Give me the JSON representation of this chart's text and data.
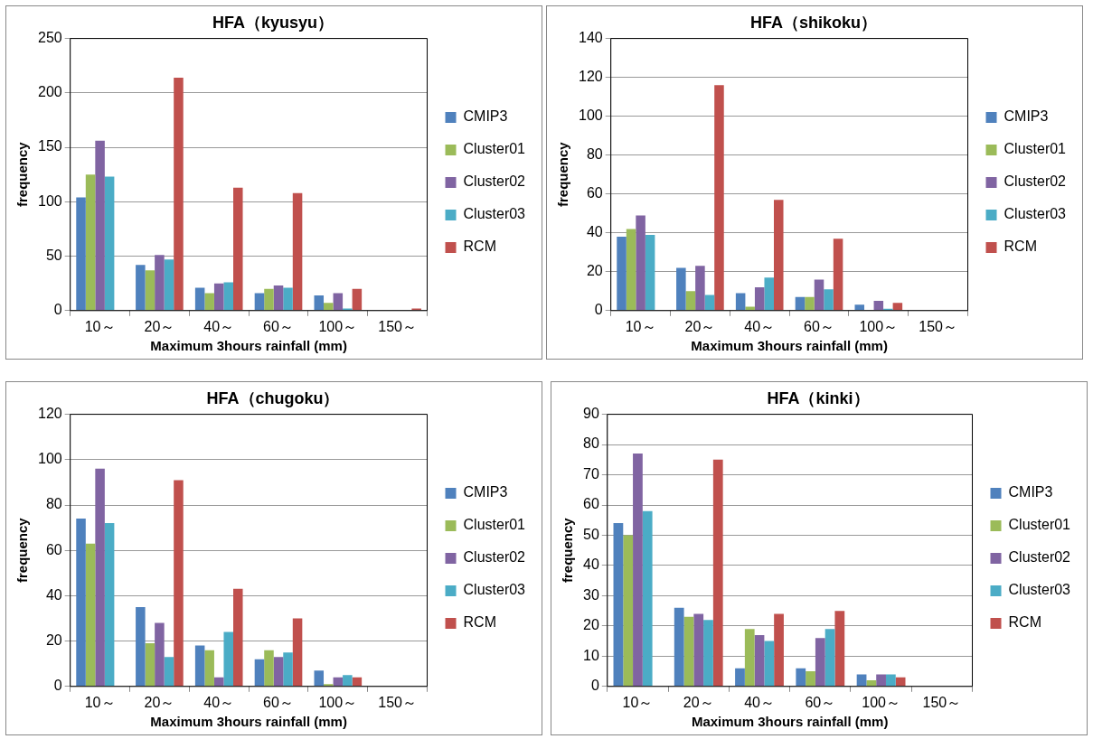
{
  "chart_data": [
    {
      "type": "bar",
      "title": "HFA（kyusyu）",
      "xlabel": "Maximum 3hours rainfall (mm)",
      "ylabel": "frequency",
      "categories": [
        "10～",
        "20～",
        "40～",
        "60～",
        "100～",
        "150～"
      ],
      "ylim": [
        0,
        250
      ],
      "yticks": [
        0,
        50,
        100,
        150,
        200,
        250
      ],
      "grid": "y",
      "legend": "right",
      "series": [
        {
          "name": "CMIP3",
          "color": "#4f81bd",
          "values": [
            104,
            42,
            21,
            16,
            14,
            0
          ]
        },
        {
          "name": "Cluster01",
          "color": "#9bbb59",
          "values": [
            125,
            37,
            16,
            20,
            7,
            0
          ]
        },
        {
          "name": "Cluster02",
          "color": "#8064a2",
          "values": [
            156,
            51,
            25,
            23,
            16,
            0
          ]
        },
        {
          "name": "Cluster03",
          "color": "#4bacc6",
          "values": [
            123,
            47,
            26,
            21,
            2,
            0
          ]
        },
        {
          "name": "RCM",
          "color": "#c0504d",
          "values": [
            0,
            214,
            113,
            108,
            20,
            2
          ]
        }
      ]
    },
    {
      "type": "bar",
      "title": "HFA（shikoku）",
      "xlabel": "Maximum 3hours rainfall (mm)",
      "ylabel": "frequency",
      "categories": [
        "10～",
        "20～",
        "40～",
        "60～",
        "100～",
        "150～"
      ],
      "ylim": [
        0,
        140
      ],
      "yticks": [
        0,
        20,
        40,
        60,
        80,
        100,
        120,
        140
      ],
      "grid": "y",
      "legend": "right",
      "series": [
        {
          "name": "CMIP3",
          "color": "#4f81bd",
          "values": [
            38,
            22,
            9,
            7,
            3,
            0
          ]
        },
        {
          "name": "Cluster01",
          "color": "#9bbb59",
          "values": [
            42,
            10,
            2,
            7,
            0,
            0
          ]
        },
        {
          "name": "Cluster02",
          "color": "#8064a2",
          "values": [
            49,
            23,
            12,
            16,
            5,
            0
          ]
        },
        {
          "name": "Cluster03",
          "color": "#4bacc6",
          "values": [
            39,
            8,
            17,
            11,
            1,
            0
          ]
        },
        {
          "name": "RCM",
          "color": "#c0504d",
          "values": [
            0,
            116,
            57,
            37,
            4,
            0
          ]
        }
      ]
    },
    {
      "type": "bar",
      "title": "HFA（chugoku）",
      "xlabel": "Maximum 3hours rainfall (mm)",
      "ylabel": "frequency",
      "categories": [
        "10～",
        "20～",
        "40～",
        "60～",
        "100～",
        "150～"
      ],
      "ylim": [
        0,
        120
      ],
      "yticks": [
        0,
        20,
        40,
        60,
        80,
        100,
        120
      ],
      "grid": "y",
      "legend": "right",
      "series": [
        {
          "name": "CMIP3",
          "color": "#4f81bd",
          "values": [
            74,
            35,
            18,
            12,
            7,
            0
          ]
        },
        {
          "name": "Cluster01",
          "color": "#9bbb59",
          "values": [
            63,
            19,
            16,
            16,
            1,
            0
          ]
        },
        {
          "name": "Cluster02",
          "color": "#8064a2",
          "values": [
            96,
            28,
            4,
            13,
            4,
            0
          ]
        },
        {
          "name": "Cluster03",
          "color": "#4bacc6",
          "values": [
            72,
            13,
            24,
            15,
            5,
            0
          ]
        },
        {
          "name": "RCM",
          "color": "#c0504d",
          "values": [
            0,
            91,
            43,
            30,
            4,
            0
          ]
        }
      ]
    },
    {
      "type": "bar",
      "title": "HFA（kinki）",
      "xlabel": "Maximum 3hours rainfall (mm)",
      "ylabel": "frequency",
      "categories": [
        "10～",
        "20～",
        "40～",
        "60～",
        "100～",
        "150～"
      ],
      "ylim": [
        0,
        90
      ],
      "yticks": [
        0,
        10,
        20,
        30,
        40,
        50,
        60,
        70,
        80,
        90
      ],
      "grid": "y",
      "legend": "right",
      "series": [
        {
          "name": "CMIP3",
          "color": "#4f81bd",
          "values": [
            54,
            26,
            6,
            6,
            4,
            0
          ]
        },
        {
          "name": "Cluster01",
          "color": "#9bbb59",
          "values": [
            50,
            23,
            19,
            5,
            2,
            0
          ]
        },
        {
          "name": "Cluster02",
          "color": "#8064a2",
          "values": [
            77,
            24,
            17,
            16,
            4,
            0
          ]
        },
        {
          "name": "Cluster03",
          "color": "#4bacc6",
          "values": [
            58,
            22,
            15,
            19,
            4,
            0
          ]
        },
        {
          "name": "RCM",
          "color": "#c0504d",
          "values": [
            0,
            75,
            24,
            25,
            3,
            0
          ]
        }
      ]
    }
  ]
}
